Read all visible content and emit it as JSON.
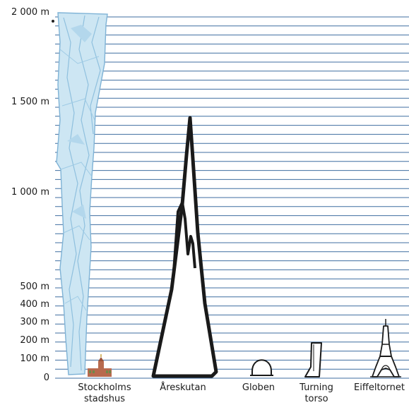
{
  "y_axis": {
    "labels": [
      "2 000 m",
      "1 500 m",
      "1 000 m",
      "500 m",
      "400 m",
      "300 m",
      "200 m",
      "100 m",
      "0"
    ]
  },
  "landmarks": [
    {
      "name_line1": "Stockholms",
      "name_line2": "stadshus",
      "icon": "city-hall-icon",
      "height_m": 106
    },
    {
      "name_line1": "Åreskutan",
      "name_line2": "",
      "icon": "mountain-peak-icon",
      "height_m": 1420
    },
    {
      "name_line1": "Globen",
      "name_line2": "",
      "icon": "globe-arena-icon",
      "height_m": 85
    },
    {
      "name_line1": "Turning",
      "name_line2": "torso",
      "icon": "twisted-tower-icon",
      "height_m": 190
    },
    {
      "name_line1": "Eiffeltornet",
      "name_line2": "",
      "icon": "eiffel-tower-icon",
      "height_m": 324
    }
  ],
  "glacier": {
    "icon": "glacier-icon"
  },
  "colors": {
    "grid_line": "#3f6ea0",
    "glacier_fill": "#cde6f3",
    "glacier_stroke": "#7fb3d6",
    "mountain": "#1a1a1a",
    "city_hall": "#b86a4e"
  }
}
